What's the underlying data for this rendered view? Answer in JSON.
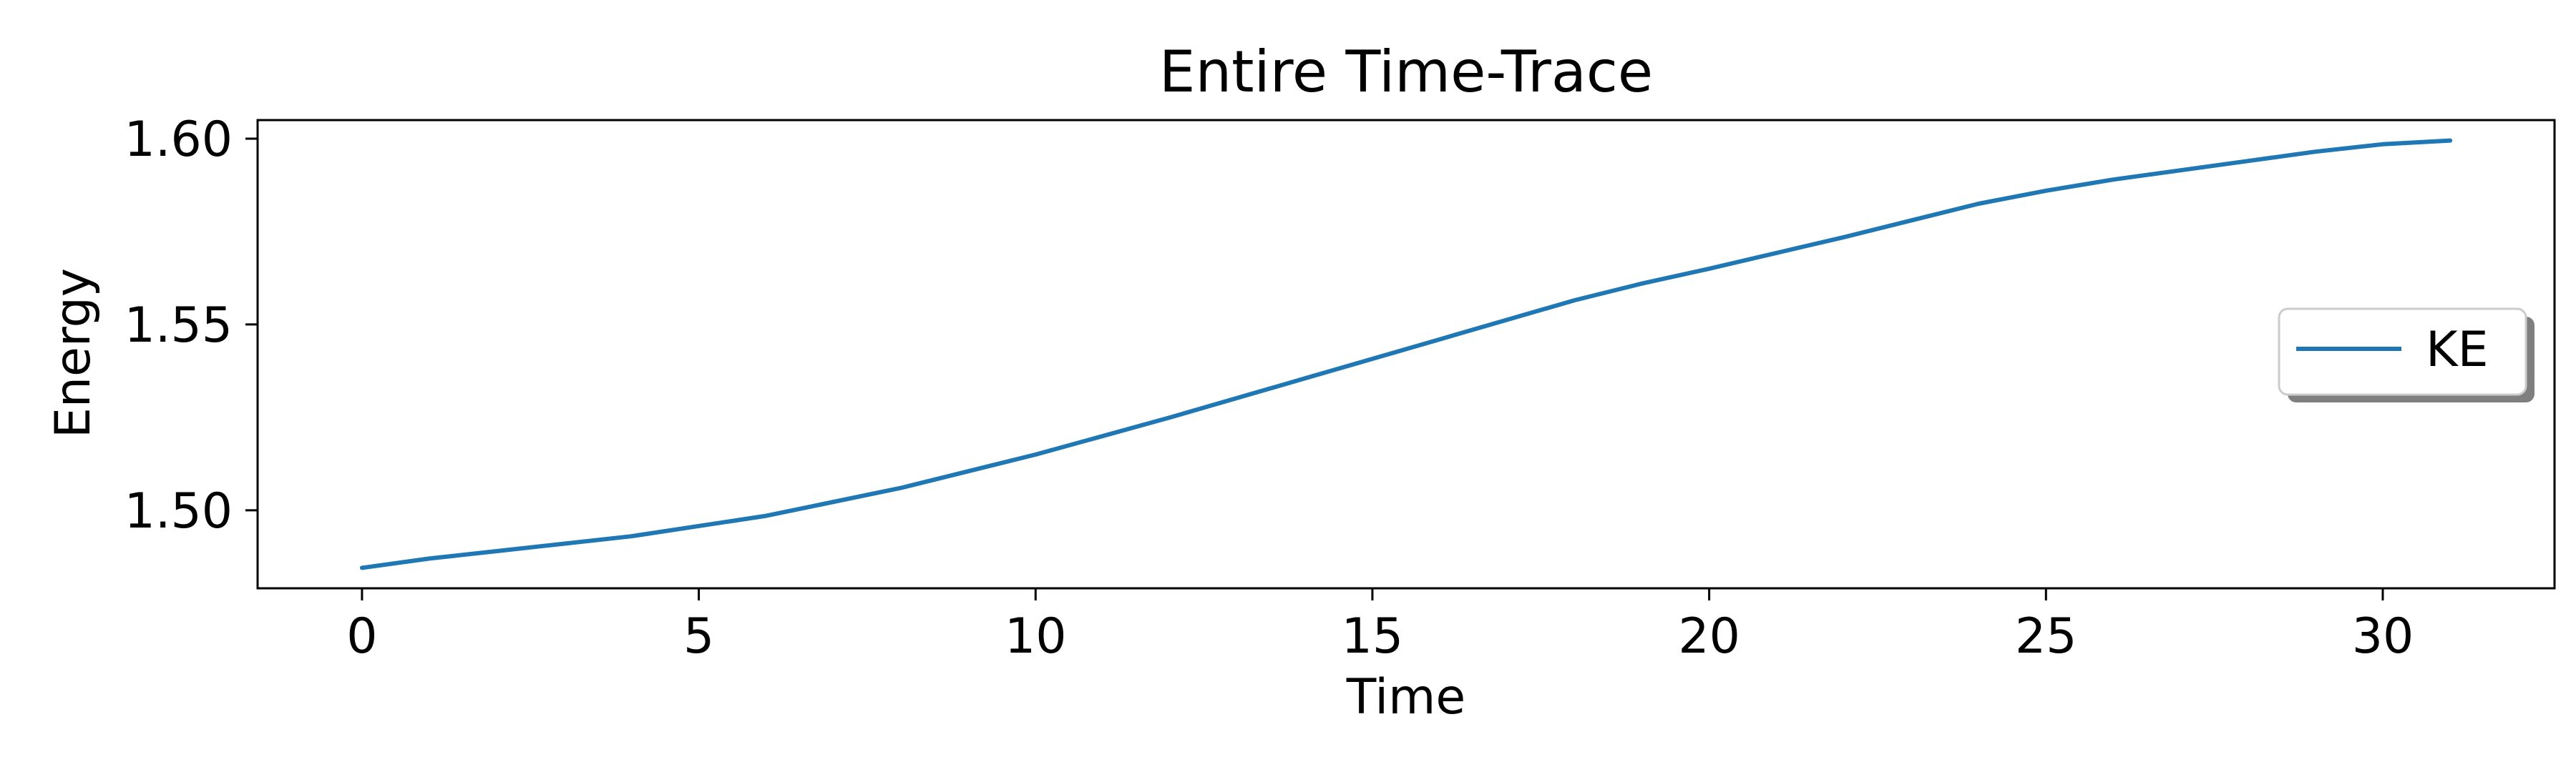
{
  "chart_data": {
    "type": "line",
    "title": "Entire Time-Trace",
    "xlabel": "Time",
    "ylabel": "Energy",
    "xlim": [
      -1.55,
      32.55
    ],
    "ylim": [
      1.479,
      1.605
    ],
    "xticks": [
      0,
      5,
      10,
      15,
      20,
      25,
      30
    ],
    "xtick_labels": [
      "0",
      "5",
      "10",
      "15",
      "20",
      "25",
      "30"
    ],
    "yticks": [
      1.5,
      1.55,
      1.6
    ],
    "ytick_labels": [
      "1.50",
      "1.55",
      "1.60"
    ],
    "grid": false,
    "legend": {
      "position": "center-right",
      "shadow": true
    },
    "series": [
      {
        "name": "KE",
        "color": "#1f77b4",
        "x": [
          0,
          1,
          2,
          4,
          6,
          8,
          10,
          12,
          14,
          16,
          18,
          19,
          20,
          22,
          24,
          25,
          26,
          28,
          29,
          30,
          31
        ],
        "y": [
          1.4845,
          1.487,
          1.489,
          1.493,
          1.4985,
          1.506,
          1.515,
          1.525,
          1.5355,
          1.546,
          1.5565,
          1.561,
          1.565,
          1.5735,
          1.5825,
          1.586,
          1.589,
          1.594,
          1.5965,
          1.5985,
          1.5995
        ]
      }
    ]
  }
}
